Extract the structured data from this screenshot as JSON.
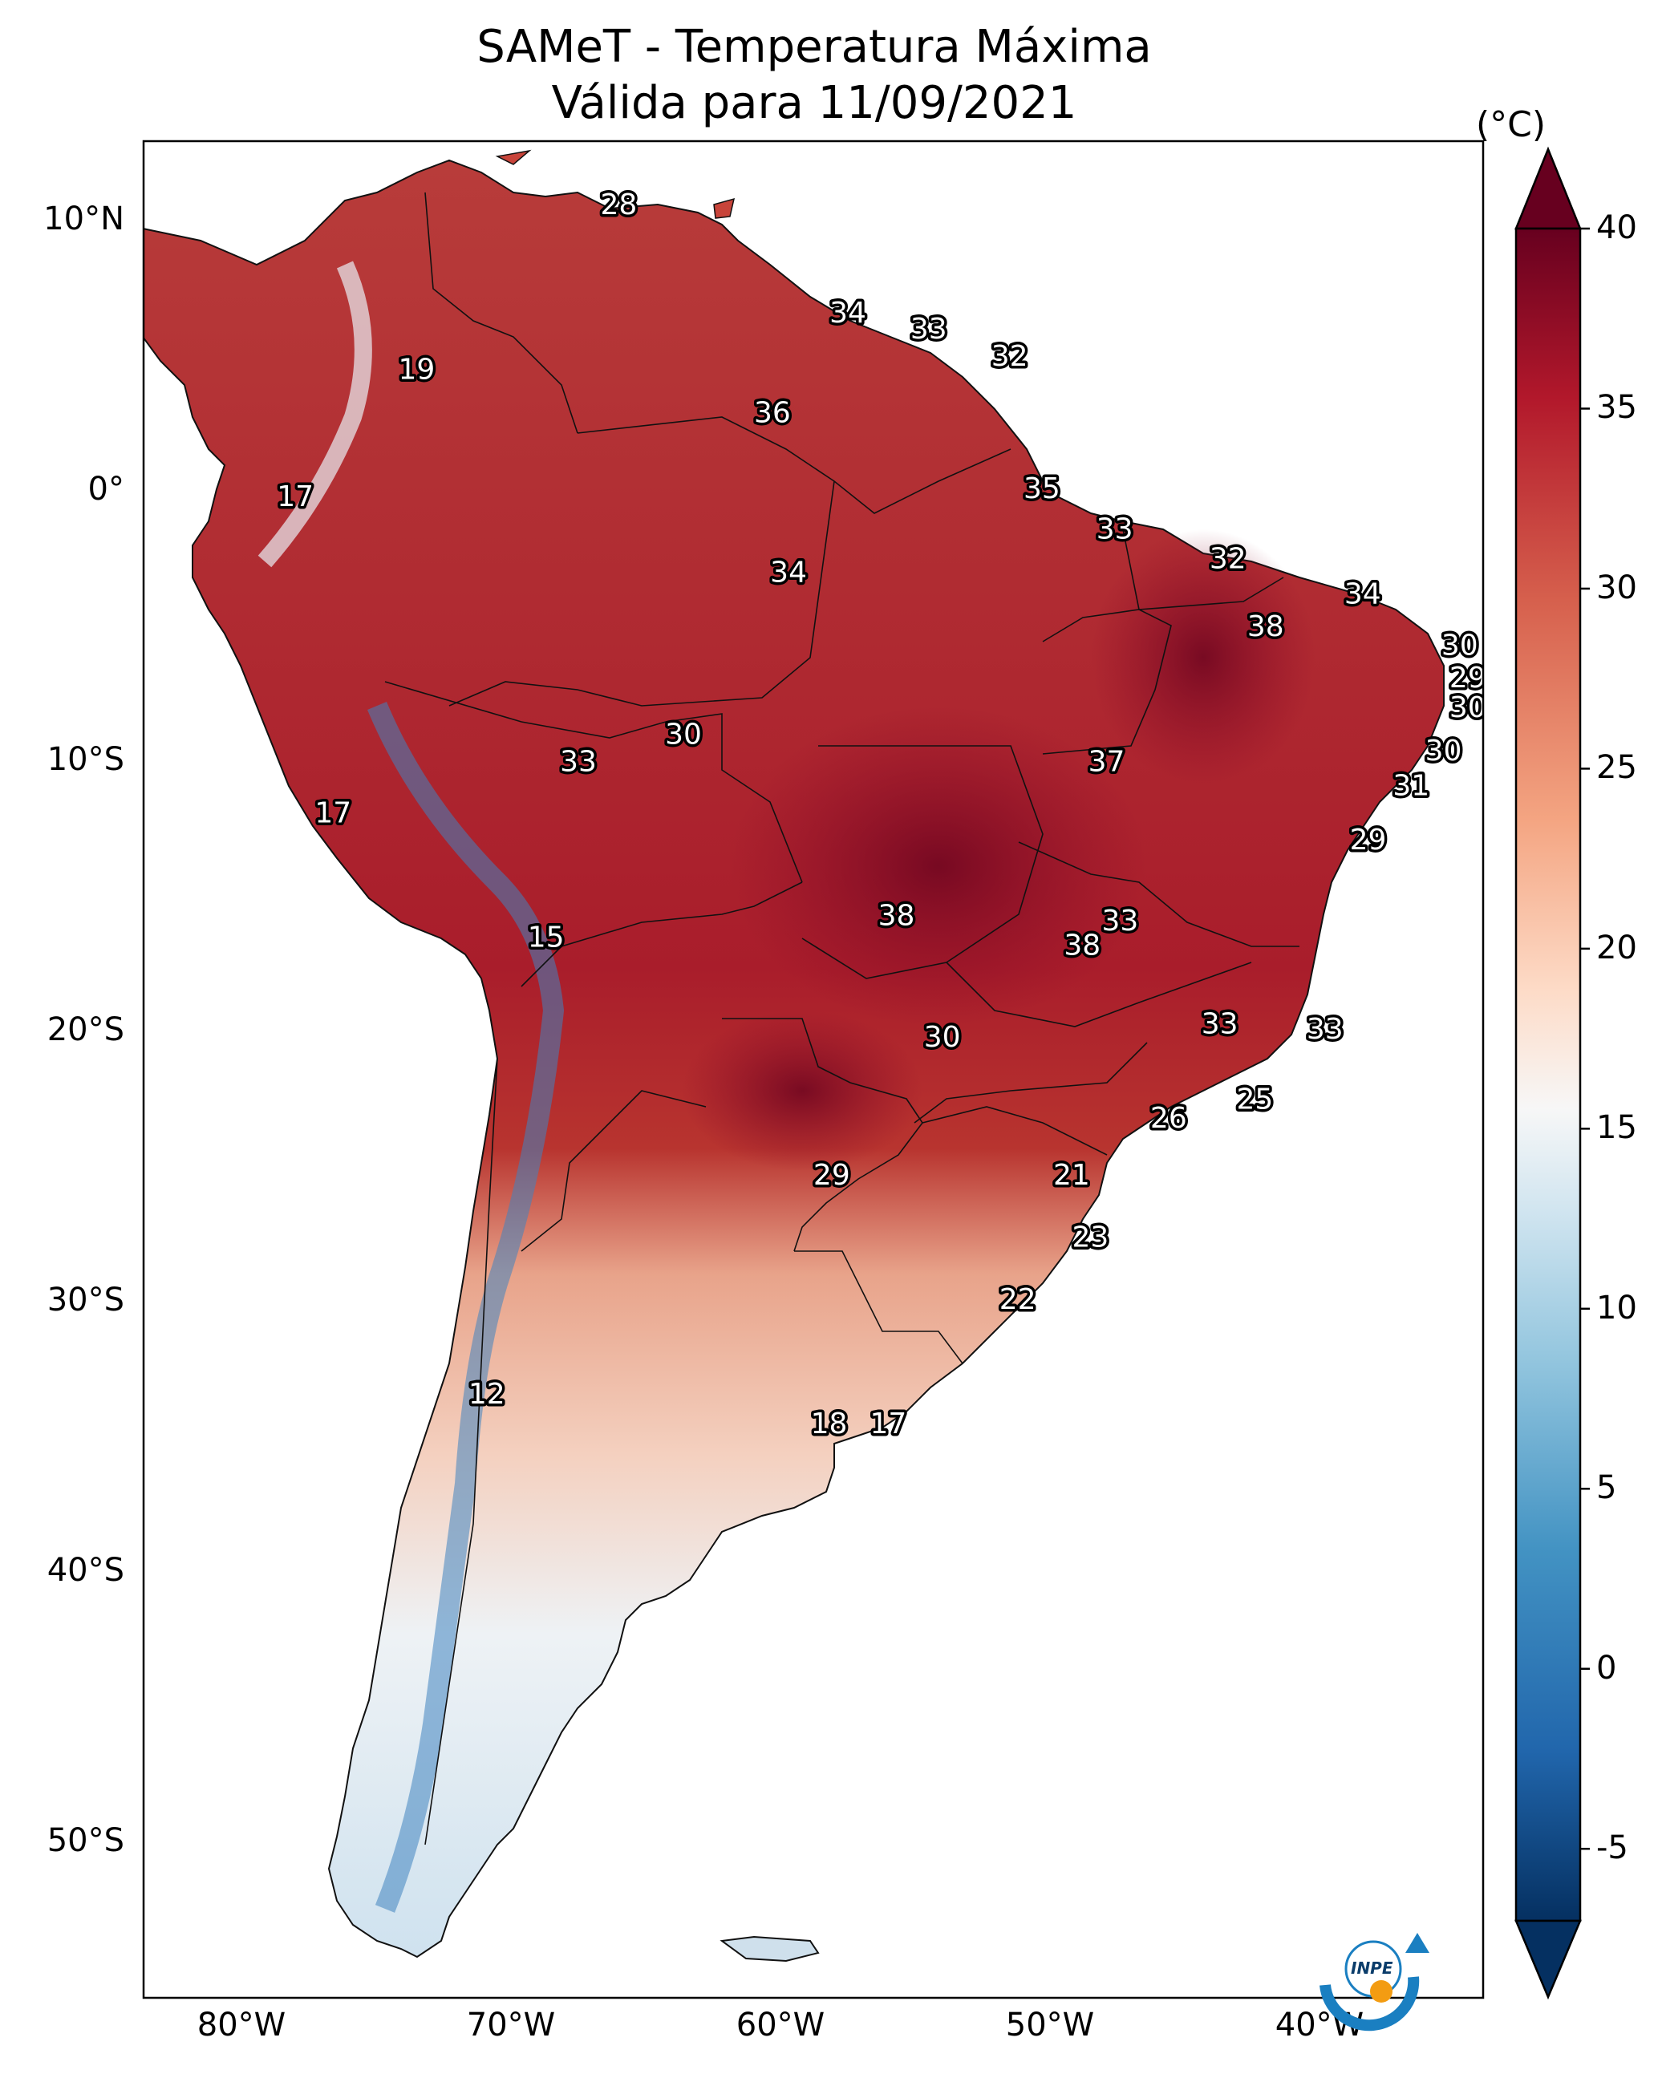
{
  "title": {
    "line1": "SAMeT - Temperatura Máxima",
    "line2": "Válida para 11/09/2021"
  },
  "axes": {
    "lat_labels": [
      "10°N",
      "0°",
      "10°S",
      "20°S",
      "30°S",
      "40°S",
      "50°S"
    ],
    "lon_labels": [
      "80°W",
      "70°W",
      "60°W",
      "50°W",
      "40°W"
    ]
  },
  "colorbar": {
    "unit": "(°C)",
    "ticks": [
      "40",
      "35",
      "30",
      "25",
      "20",
      "15",
      "10",
      "5",
      "0",
      "-5"
    ],
    "min": -7,
    "max": 40,
    "colors": [
      "#053061",
      "#2166ac",
      "#4393c3",
      "#92c5de",
      "#d1e5f0",
      "#f7f7f7",
      "#fddbc7",
      "#f4a582",
      "#d6604d",
      "#b2182b",
      "#67001f"
    ]
  },
  "temperature_labels": [
    {
      "value": "28",
      "lon": -66.0,
      "lat": 10.5
    },
    {
      "value": "34",
      "lon": -57.5,
      "lat": 6.5
    },
    {
      "value": "33",
      "lon": -54.5,
      "lat": 5.9
    },
    {
      "value": "32",
      "lon": -51.5,
      "lat": 4.9
    },
    {
      "value": "19",
      "lon": -73.5,
      "lat": 4.4
    },
    {
      "value": "36",
      "lon": -60.3,
      "lat": 2.8
    },
    {
      "value": "35",
      "lon": -50.3,
      "lat": 0.0
    },
    {
      "value": "17",
      "lon": -78.0,
      "lat": -0.3
    },
    {
      "value": "33",
      "lon": -47.6,
      "lat": -1.5
    },
    {
      "value": "34",
      "lon": -59.7,
      "lat": -3.1
    },
    {
      "value": "32",
      "lon": -43.4,
      "lat": -2.6
    },
    {
      "value": "34",
      "lon": -38.4,
      "lat": -3.9
    },
    {
      "value": "38",
      "lon": -42.0,
      "lat": -5.1
    },
    {
      "value": "30",
      "lon": -34.8,
      "lat": -5.8
    },
    {
      "value": "29",
      "lon": -34.5,
      "lat": -7.0
    },
    {
      "value": "30",
      "lon": -34.5,
      "lat": -8.1
    },
    {
      "value": "30",
      "lon": -63.6,
      "lat": -9.1
    },
    {
      "value": "30",
      "lon": -35.4,
      "lat": -9.7
    },
    {
      "value": "33",
      "lon": -67.5,
      "lat": -10.1
    },
    {
      "value": "37",
      "lon": -47.9,
      "lat": -10.1
    },
    {
      "value": "31",
      "lon": -36.6,
      "lat": -11.0
    },
    {
      "value": "17",
      "lon": -76.6,
      "lat": -12.0
    },
    {
      "value": "29",
      "lon": -38.2,
      "lat": -13.0
    },
    {
      "value": "38",
      "lon": -55.7,
      "lat": -15.8
    },
    {
      "value": "33",
      "lon": -47.4,
      "lat": -16.0
    },
    {
      "value": "38",
      "lon": -48.8,
      "lat": -16.9
    },
    {
      "value": "15",
      "lon": -68.7,
      "lat": -16.6
    },
    {
      "value": "33",
      "lon": -43.7,
      "lat": -19.8
    },
    {
      "value": "33",
      "lon": -39.8,
      "lat": -20.0
    },
    {
      "value": "30",
      "lon": -54.0,
      "lat": -20.3
    },
    {
      "value": "25",
      "lon": -42.4,
      "lat": -22.6
    },
    {
      "value": "26",
      "lon": -45.6,
      "lat": -23.3
    },
    {
      "value": "29",
      "lon": -58.1,
      "lat": -25.4
    },
    {
      "value": "21",
      "lon": -49.2,
      "lat": -25.4
    },
    {
      "value": "23",
      "lon": -48.5,
      "lat": -27.7
    },
    {
      "value": "22",
      "lon": -51.2,
      "lat": -30.0
    },
    {
      "value": "12",
      "lon": -70.9,
      "lat": -33.5
    },
    {
      "value": "18",
      "lon": -58.2,
      "lat": -34.6
    },
    {
      "value": "17",
      "lon": -56.0,
      "lat": -34.6
    }
  ],
  "logo": {
    "text": "INPE"
  }
}
